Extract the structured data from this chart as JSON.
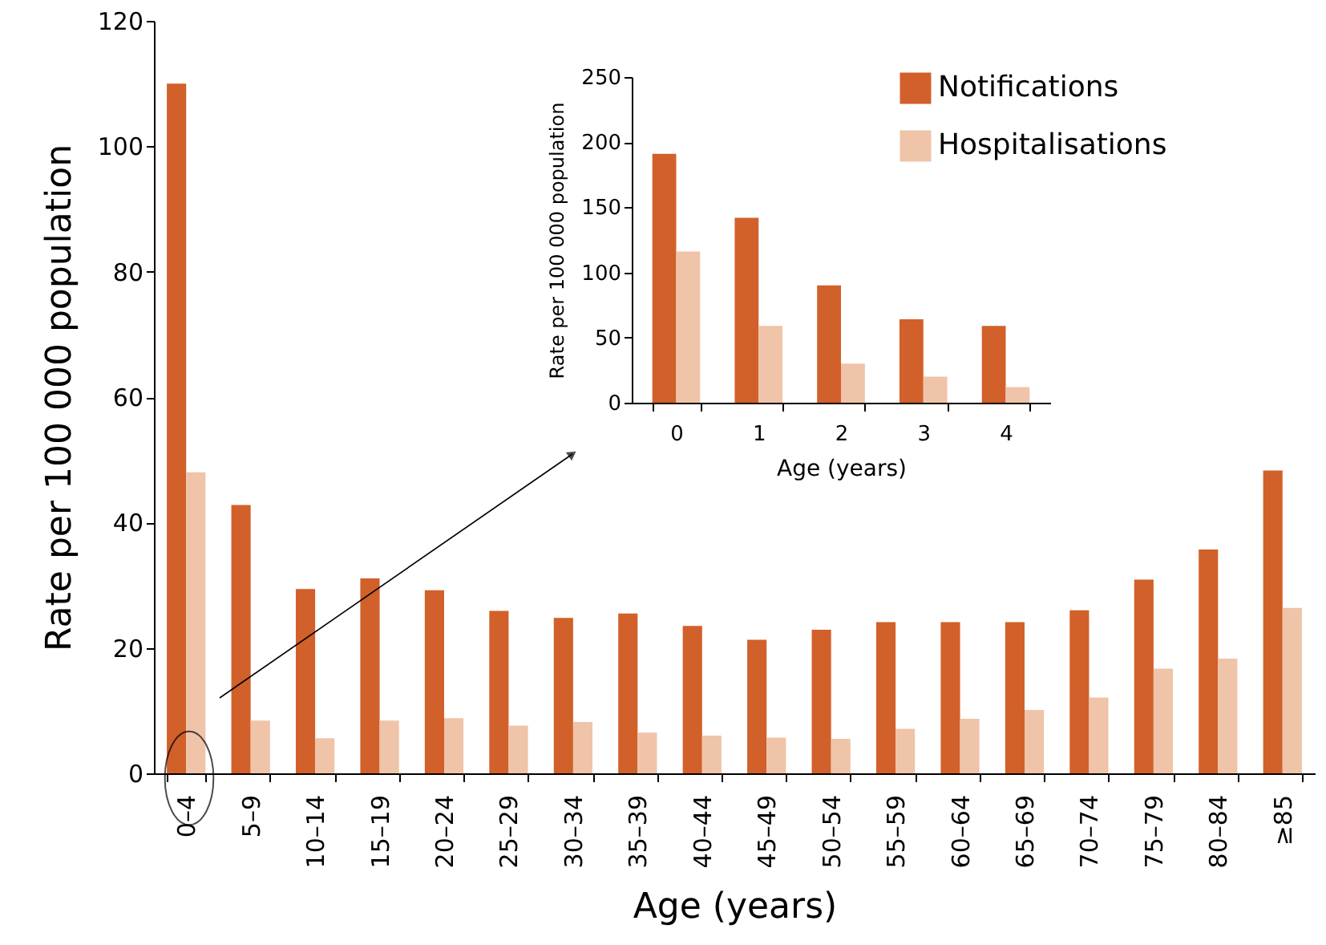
{
  "chart_data": [
    {
      "type": "bar",
      "xlabel": "Age (years)",
      "ylabel": "Rate per 100 000 population",
      "legend": "top right",
      "categories": [
        "0–4",
        "5–9",
        "10–14",
        "15–19",
        "20–24",
        "25–29",
        "30–34",
        "35–39",
        "40–44",
        "45–49",
        "50–54",
        "55–59",
        "60–64",
        "65–69",
        "70–74",
        "75–79",
        "80–84",
        "≥85"
      ],
      "series": [
        {
          "name": "Notifications",
          "color": "#d2602a",
          "values": [
            110,
            42.8,
            29.4,
            31.1,
            29.2,
            25.9,
            24.8,
            25.5,
            23.5,
            21.3,
            22.9,
            24.1,
            24.1,
            24.1,
            26.0,
            30.9,
            35.7,
            48.3
          ]
        },
        {
          "name": "Hospitalisations",
          "color": "#efc4a9",
          "values": [
            48,
            8.4,
            5.6,
            8.4,
            8.8,
            7.6,
            8.2,
            6.5,
            6.0,
            5.7,
            5.5,
            7.1,
            8.7,
            10.1,
            12.1,
            16.7,
            18.3,
            26.4
          ]
        }
      ],
      "ylim": [
        0,
        120
      ],
      "yticks": [
        0,
        20,
        40,
        60,
        80,
        100,
        120
      ]
    },
    {
      "type": "bar",
      "xlabel": "Age (years)",
      "ylabel": "Rate per 100 000 population",
      "categories": [
        "0",
        "1",
        "2",
        "3",
        "4"
      ],
      "series": [
        {
          "name": "Notifications",
          "color": "#d2602a",
          "values": [
            191,
            142,
            90,
            64,
            59
          ]
        },
        {
          "name": "Hospitalisations",
          "color": "#efc4a9",
          "values": [
            116,
            59,
            30,
            20,
            12
          ]
        }
      ],
      "ylim": [
        0,
        250
      ],
      "yticks": [
        0,
        50,
        100,
        150,
        200,
        250
      ]
    }
  ]
}
